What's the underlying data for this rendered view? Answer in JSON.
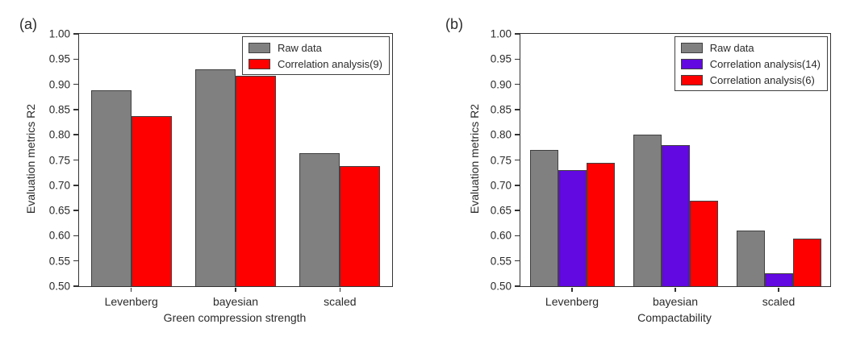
{
  "style": {
    "background": "#ffffff",
    "axis_color": "#333333",
    "bar_border_color": "#404040",
    "text_color": "#2b2b2b",
    "gray": "#808080",
    "red": "#ff0000",
    "purple": "#6208e0"
  },
  "chart_data": [
    {
      "type": "bar",
      "panel_label": "(a)",
      "xlabel": "Green compression strength",
      "ylabel": "Evaluation metrics R2",
      "categories": [
        "Levenberg",
        "bayesian",
        "scaled"
      ],
      "ylim": [
        0.5,
        1.0
      ],
      "ytick_labels": [
        "0.50",
        "0.55",
        "0.60",
        "0.65",
        "0.70",
        "0.75",
        "0.80",
        "0.85",
        "0.90",
        "0.95",
        "1.00"
      ],
      "grid": false,
      "legend_position": "top-right",
      "series": [
        {
          "name": "Raw data",
          "color": "#808080",
          "values": [
            0.888,
            0.93,
            0.763
          ]
        },
        {
          "name": "Correlation analysis(9)",
          "color": "#ff0000",
          "values": [
            0.837,
            0.917,
            0.738
          ]
        }
      ]
    },
    {
      "type": "bar",
      "panel_label": "(b)",
      "xlabel": "Compactability",
      "ylabel": "Evaluation metrics R2",
      "categories": [
        "Levenberg",
        "bayesian",
        "scaled"
      ],
      "ylim": [
        0.5,
        1.0
      ],
      "ytick_labels": [
        "0.50",
        "0.55",
        "0.60",
        "0.65",
        "0.70",
        "0.75",
        "0.80",
        "0.85",
        "0.90",
        "0.95",
        "1.00"
      ],
      "grid": false,
      "legend_position": "top-right",
      "series": [
        {
          "name": "Raw data",
          "color": "#808080",
          "values": [
            0.77,
            0.8,
            0.61
          ]
        },
        {
          "name": "Correlation analysis(14)",
          "color": "#6208e0",
          "values": [
            0.73,
            0.78,
            0.525
          ]
        },
        {
          "name": "Correlation analysis(6)",
          "color": "#ff0000",
          "values": [
            0.745,
            0.67,
            0.595
          ]
        }
      ]
    }
  ]
}
